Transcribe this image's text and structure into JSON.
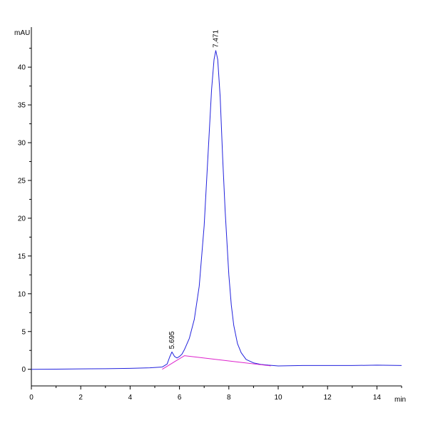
{
  "chart_data": {
    "type": "line",
    "title": "",
    "xlabel": "",
    "ylabel": "",
    "x_unit": "min",
    "y_unit": "mAU",
    "xlim": [
      0,
      15
    ],
    "ylim": [
      -2.2,
      45.3
    ],
    "x_ticks": [
      0,
      2,
      4,
      6,
      8,
      10,
      12,
      14
    ],
    "y_ticks": [
      0,
      5,
      10,
      15,
      20,
      25,
      30,
      35,
      40
    ],
    "grid": false,
    "series": [
      {
        "color": "#2222dd",
        "x": [
          0.0,
          1.0,
          2.0,
          3.0,
          4.0,
          4.8,
          5.3,
          5.5,
          5.6,
          5.695,
          5.8,
          5.9,
          6.0,
          6.1,
          6.2,
          6.4,
          6.6,
          6.8,
          7.0,
          7.1,
          7.2,
          7.3,
          7.4,
          7.471,
          7.55,
          7.65,
          7.75,
          7.85,
          8.0,
          8.1,
          8.2,
          8.35,
          8.5,
          8.7,
          9.0,
          9.3,
          9.6,
          10.0,
          11.0,
          12.0,
          13.0,
          14.0,
          15.0
        ],
        "y": [
          0.0,
          0.02,
          0.05,
          0.08,
          0.12,
          0.2,
          0.3,
          0.7,
          1.6,
          2.3,
          1.7,
          1.5,
          1.7,
          2.0,
          2.6,
          4.1,
          6.6,
          11.0,
          19.0,
          25.0,
          31.0,
          37.0,
          41.0,
          42.2,
          41.0,
          36.0,
          28.0,
          21.0,
          12.5,
          8.5,
          5.8,
          3.4,
          2.2,
          1.3,
          0.85,
          0.65,
          0.55,
          0.45,
          0.5,
          0.5,
          0.5,
          0.55,
          0.5
        ]
      },
      {
        "color": "#dd22cc",
        "x": [
          5.3,
          5.8,
          6.2,
          9.7
        ],
        "y": [
          0.0,
          1.0,
          1.8,
          0.45
        ]
      }
    ],
    "peak_labels": [
      {
        "text": "5.695",
        "x": 5.695,
        "y": 2.3
      },
      {
        "text": "7.471",
        "x": 7.471,
        "y": 42.2
      }
    ]
  }
}
